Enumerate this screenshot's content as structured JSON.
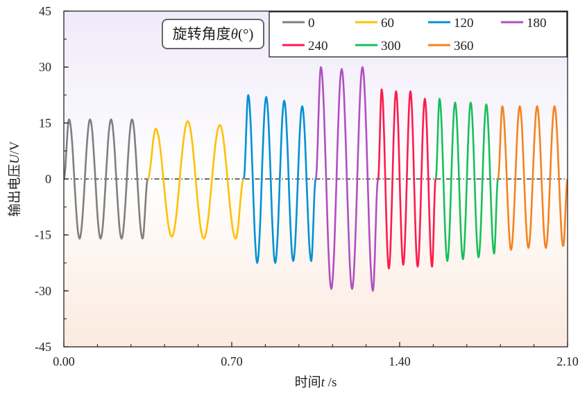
{
  "chart_data": {
    "type": "line",
    "xlabel": "时间",
    "xlabel_var": "t",
    "xlabel_unit": " /s",
    "ylabel": "输出电压",
    "ylabel_var": "U",
    "ylabel_unit": "/V",
    "xlim": [
      0,
      2.1
    ],
    "ylim": [
      -45,
      45
    ],
    "xticks": [
      0.0,
      0.7,
      1.4,
      2.1
    ],
    "xtick_labels": [
      "0.00",
      "0.70",
      "1.40",
      "2.10"
    ],
    "yticks": [
      -45,
      -30,
      -15,
      0,
      15,
      30,
      45
    ],
    "ytick_labels": [
      "-45",
      "-30",
      "-15",
      "0",
      "15",
      "30",
      "45"
    ],
    "zero_line": "dash-dot",
    "grid": false,
    "background": "vertical gradient, lavender top to peach bottom",
    "annotation": {
      "text": "旋转角度",
      "var": "θ",
      "unit": "(°)"
    },
    "legend_placement": "top-right",
    "series": [
      {
        "name": "0",
        "color": "#7f7f7f",
        "t_start": 0.0,
        "t_end": 0.35,
        "peaks": [
          16,
          16,
          16,
          16
        ],
        "troughs": [
          -16,
          -16,
          -16,
          -16
        ]
      },
      {
        "name": "60",
        "color": "#ffc000",
        "t_start": 0.35,
        "t_end": 0.75,
        "peaks": [
          13.5,
          15.5,
          14.5
        ],
        "troughs": [
          -15.5,
          -16,
          -16
        ]
      },
      {
        "name": "120",
        "color": "#0091d5",
        "t_start": 0.75,
        "t_end": 1.05,
        "peaks": [
          22.5,
          22,
          21,
          19.5
        ],
        "troughs": [
          -22.5,
          -22.5,
          -22
        ]
      },
      {
        "name": "180",
        "color": "#b04fc2",
        "t_start": 1.05,
        "t_end": 1.31,
        "peaks": [
          30,
          29.5,
          30
        ],
        "troughs": [
          -29.5,
          -29.5,
          -30
        ]
      },
      {
        "name": "240",
        "color": "#ff1a4b",
        "t_start": 1.31,
        "t_end": 1.55,
        "peaks": [
          24,
          23.5,
          23.5,
          21.5
        ],
        "troughs": [
          -24,
          -23,
          -23.5
        ]
      },
      {
        "name": "300",
        "color": "#18bf5a",
        "t_start": 1.55,
        "t_end": 1.81,
        "peaks": [
          21.5,
          20.5,
          20.5,
          20
        ],
        "troughs": [
          -22,
          -21.5,
          -21,
          -20
        ]
      },
      {
        "name": "360",
        "color": "#f58220",
        "t_start": 1.81,
        "t_end": 2.1,
        "peaks": [
          19.5,
          19.5,
          19.5,
          19.5
        ],
        "troughs": [
          -19,
          -18.5,
          -18.5,
          -18
        ]
      }
    ]
  }
}
